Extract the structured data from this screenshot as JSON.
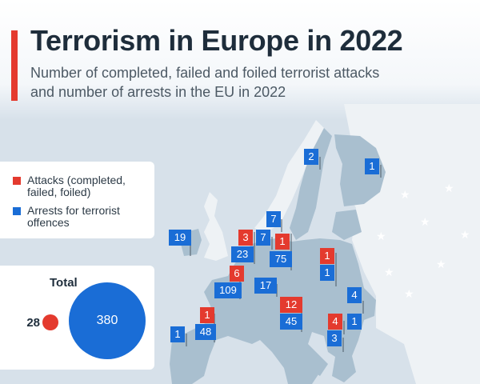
{
  "header": {
    "title": "Terrorism in Europe in 2022",
    "subtitle_line1": "Number of completed, failed and foiled terrorist attacks",
    "subtitle_line2": "and number of arrests in the EU in 2022"
  },
  "legend": {
    "attacks_label": "Attacks (completed, failed, foiled)",
    "arrests_label": "Arrests for terrorist offences",
    "attacks_color": "#e43a2e",
    "arrests_color": "#1a6dd6"
  },
  "totals": {
    "title": "Total",
    "attacks": "28",
    "arrests": "380"
  },
  "map_markers": [
    {
      "country": "Sweden",
      "arrests": "2"
    },
    {
      "country": "Finland",
      "arrests": "1"
    },
    {
      "country": "Denmark",
      "arrests": "7"
    },
    {
      "country": "Ireland",
      "arrests": "19"
    },
    {
      "country": "Netherlands",
      "attacks": "3",
      "arrests": "23"
    },
    {
      "country": "Belgium",
      "arrests": "7"
    },
    {
      "country": "Germany",
      "attacks": "1",
      "arrests": "75"
    },
    {
      "country": "Poland",
      "attacks": "1",
      "arrests": "1"
    },
    {
      "country": "France",
      "attacks": "6",
      "arrests": "109"
    },
    {
      "country": "Austria",
      "arrests": "17"
    },
    {
      "country": "Italy",
      "attacks": "12",
      "arrests": "45"
    },
    {
      "country": "Romania",
      "arrests": "4"
    },
    {
      "country": "Spain",
      "attacks": "1",
      "arrests": "48"
    },
    {
      "country": "Portugal",
      "arrests": "1"
    },
    {
      "country": "Bulgaria",
      "attacks": "4",
      "arrests": "1"
    },
    {
      "country": "Greece",
      "arrests": "3"
    }
  ]
}
